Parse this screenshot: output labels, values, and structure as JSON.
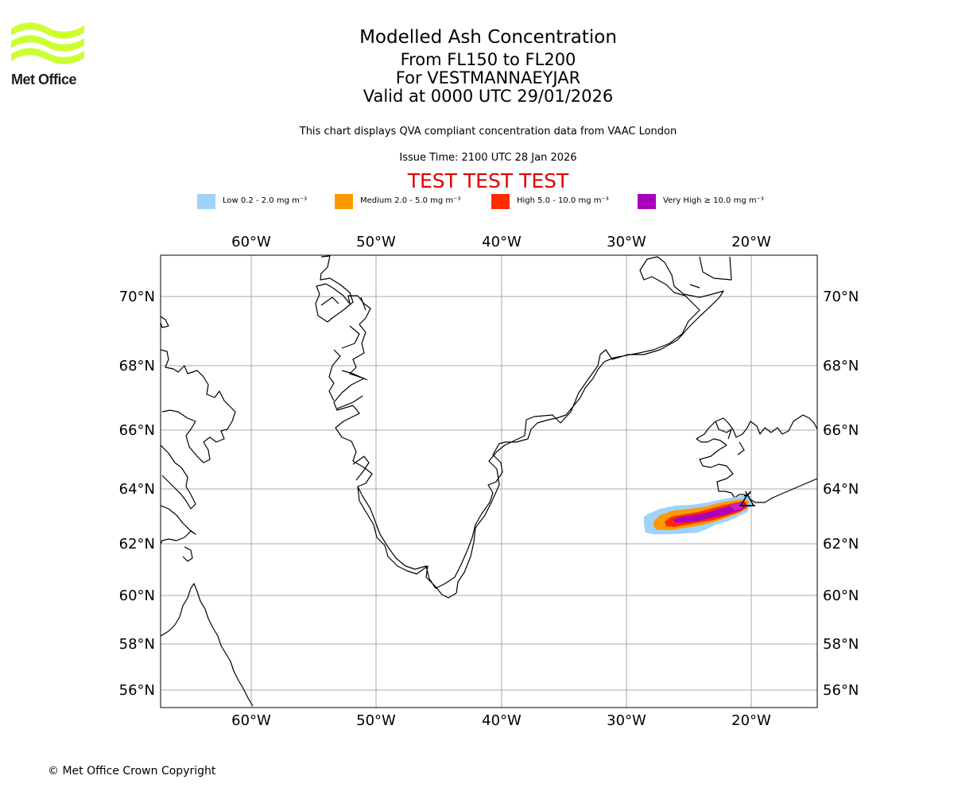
{
  "header": {
    "title": "Modelled Ash Concentration",
    "levels": "From FL150 to FL200",
    "volcano": "For VESTMANNAEYJAR",
    "valid": "Valid at 0000 UTC 29/01/2026",
    "description": "This chart displays QVA compliant concentration data from VAAC London",
    "issue_time": "Issue Time: 2100 UTC 28 Jan 2026",
    "test_banner": "TEST TEST TEST"
  },
  "logo": {
    "text": "Met Office",
    "color": "#ccff33"
  },
  "legend": [
    {
      "label": "Low 0.2 - 2.0 mg m⁻³",
      "color": "#9fd3fb"
    },
    {
      "label": "Medium 2.0 - 5.0 mg m⁻³",
      "color": "#ff9900"
    },
    {
      "label": "High 5.0 - 10.0 mg m⁻³",
      "color": "#ff2c00"
    },
    {
      "label": "Very High ≥ 10.0 mg m⁻³",
      "color": "#aa00bb"
    }
  ],
  "map": {
    "lon_labels": [
      "60°W",
      "50°W",
      "40°W",
      "30°W",
      "20°W"
    ],
    "lat_labels": [
      "70°N",
      "68°N",
      "66°N",
      "64°N",
      "62°N",
      "60°N",
      "58°N",
      "56°N"
    ],
    "gridline_color": "#aaaaaa",
    "coastline_color": "#000000",
    "volcano_marker": "volcano-icon"
  },
  "footer": {
    "copyright": "© Met Office Crown Copyright"
  }
}
